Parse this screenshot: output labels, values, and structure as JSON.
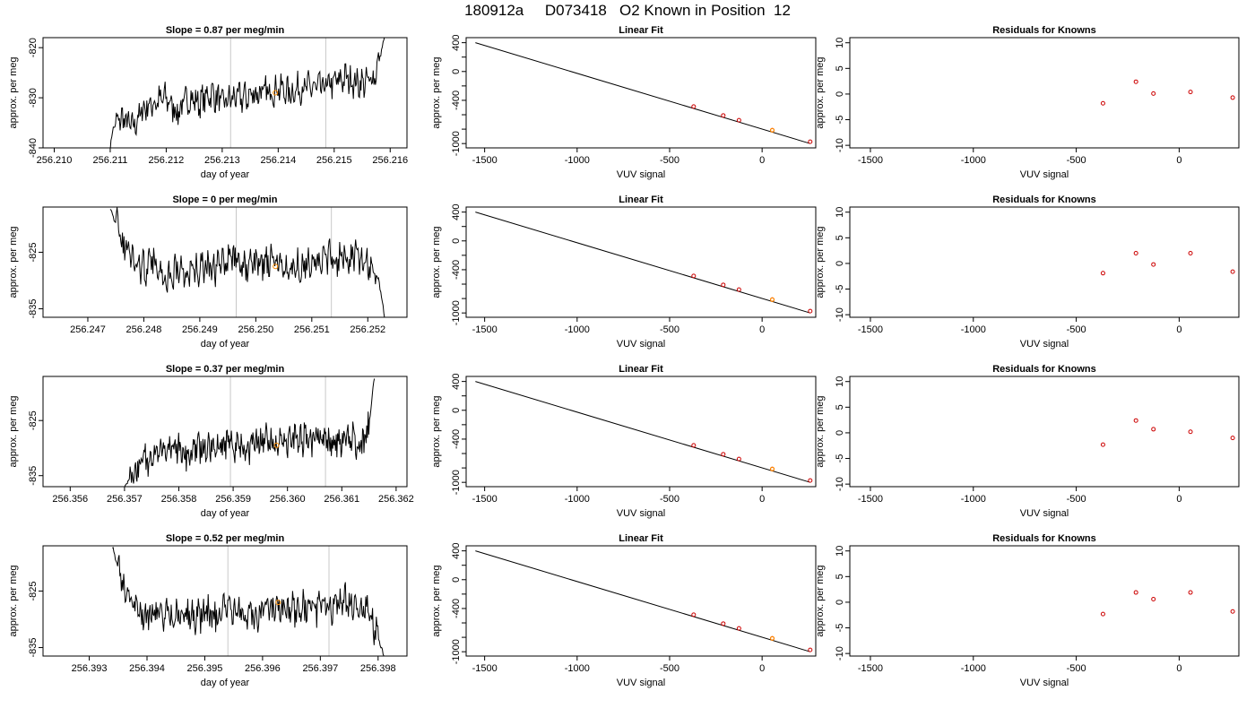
{
  "page": {
    "title": "180912a     D073418   O2 Known in Position  12"
  },
  "chart_data": [
    {
      "type": "line",
      "panel": "timeseries",
      "row": 0,
      "title": "Slope =  0.87  per meg/min",
      "xlabel": "day of year",
      "ylabel": "approx. per meg",
      "xlim": [
        256.2098,
        256.2163
      ],
      "ylim": [
        -840,
        -818
      ],
      "xticks": [
        "256.210",
        "256.211",
        "256.212",
        "256.213",
        "256.214",
        "256.215",
        "256.216"
      ],
      "yticks": [
        "-820",
        "-830",
        "-840"
      ],
      "x_start": 256.211,
      "x_end": 256.2159,
      "vlines": [
        256.21315,
        256.21485
      ],
      "marker": {
        "x": 256.21395,
        "y": -829.0
      },
      "series": [
        {
          "x": [
            256.211,
            256.21105,
            256.2112,
            256.2114,
            256.2116,
            256.2118,
            256.212,
            256.2122,
            256.2124,
            256.2126,
            256.2128,
            256.213,
            256.2132,
            256.2134,
            256.2136,
            256.2138,
            256.214,
            256.2142,
            256.2144,
            256.2146,
            256.2148,
            256.215,
            256.2152,
            256.2154,
            256.2156,
            256.21575,
            256.2159
          ],
          "y": [
            -840,
            -836,
            -834,
            -836,
            -832,
            -831,
            -830,
            -833,
            -830,
            -831,
            -829,
            -831,
            -830,
            -830,
            -829,
            -829,
            -828,
            -829,
            -828,
            -828,
            -828,
            -827,
            -826,
            -827,
            -827,
            -825,
            -818
          ]
        }
      ]
    },
    {
      "type": "scatter",
      "panel": "linear-fit",
      "row": 0,
      "title": "Linear Fit",
      "xlabel": "VUV signal",
      "ylabel": "approx. per meg",
      "xlim": [
        -1600,
        290
      ],
      "ylim": [
        -1060,
        470
      ],
      "xticks": [
        -1500,
        -1000,
        -500,
        0
      ],
      "yticks": [
        400,
        0,
        -400,
        -1000
      ],
      "fit_line": {
        "x": [
          -1550,
          260
        ],
        "y": [
          400,
          -1000
        ]
      },
      "points": {
        "x": [
          -370,
          -210,
          -125,
          55,
          260
        ],
        "y": [
          -486,
          -610,
          -676,
          -815,
          -975
        ]
      },
      "marker": {
        "x": 55,
        "y": -815
      }
    },
    {
      "type": "scatter",
      "panel": "residuals",
      "row": 0,
      "title": "Residuals for Knowns",
      "xlabel": "VUV signal",
      "ylabel": "approx. per meg",
      "xlim": [
        -1600,
        290
      ],
      "ylim": [
        -10.5,
        11
      ],
      "xticks": [
        -1500,
        -1000,
        -500,
        0
      ],
      "yticks": [
        10,
        5,
        0,
        -5,
        -10
      ],
      "points": {
        "x": [
          -370,
          -210,
          -125,
          55,
          260
        ],
        "y": [
          -1.8,
          2.4,
          0.1,
          0.4,
          -0.7
        ]
      }
    },
    {
      "type": "line",
      "panel": "timeseries",
      "row": 1,
      "title": "Slope =  0  per meg/min",
      "xlabel": "day of year",
      "ylabel": "approx. per meg",
      "xlim": [
        256.2462,
        256.2527
      ],
      "ylim": [
        -836.5,
        -817
      ],
      "xticks": [
        "256.247",
        "256.248",
        "256.249",
        "256.250",
        "256.251",
        "256.252"
      ],
      "yticks": [
        "-825",
        "-835"
      ],
      "x_start": 256.2474,
      "x_end": 256.2523,
      "vlines": [
        256.24965,
        256.25135
      ],
      "marker": {
        "x": 256.25035,
        "y": -827.5
      },
      "series": [
        {
          "x": [
            256.2474,
            256.2476,
            256.2478,
            256.248,
            256.2482,
            256.2484,
            256.2486,
            256.2488,
            256.249,
            256.2492,
            256.2494,
            256.2496,
            256.2498,
            256.25,
            256.2502,
            256.2504,
            256.2506,
            256.2508,
            256.251,
            256.2512,
            256.2514,
            256.2516,
            256.2518,
            256.252,
            256.2522,
            256.2523
          ],
          "y": [
            -817,
            -823,
            -826,
            -828,
            -827,
            -829,
            -828,
            -829,
            -828,
            -828,
            -827,
            -826,
            -828,
            -827,
            -827,
            -827,
            -828,
            -827,
            -827,
            -826,
            -826,
            -826,
            -826,
            -827,
            -830,
            -836.5
          ]
        }
      ]
    },
    {
      "type": "scatter",
      "panel": "linear-fit",
      "row": 1,
      "title": "Linear Fit",
      "xlabel": "VUV signal",
      "ylabel": "approx. per meg",
      "xlim": [
        -1600,
        290
      ],
      "ylim": [
        -1060,
        470
      ],
      "xticks": [
        -1500,
        -1000,
        -500,
        0
      ],
      "yticks": [
        400,
        0,
        -400,
        -1000
      ],
      "fit_line": {
        "x": [
          -1550,
          260
        ],
        "y": [
          400,
          -1000
        ]
      },
      "points": {
        "x": [
          -370,
          -210,
          -125,
          55,
          260
        ],
        "y": [
          -486,
          -610,
          -676,
          -815,
          -975
        ]
      },
      "marker": {
        "x": 55,
        "y": -815
      }
    },
    {
      "type": "scatter",
      "panel": "residuals",
      "row": 1,
      "title": "Residuals for Knowns",
      "xlabel": "VUV signal",
      "ylabel": "approx. per meg",
      "xlim": [
        -1600,
        290
      ],
      "ylim": [
        -10.5,
        11
      ],
      "xticks": [
        -1500,
        -1000,
        -500,
        0
      ],
      "yticks": [
        10,
        5,
        0,
        -5,
        -10
      ],
      "points": {
        "x": [
          -370,
          -210,
          -125,
          55,
          260
        ],
        "y": [
          -1.9,
          2.0,
          -0.2,
          2.0,
          -1.6
        ]
      }
    },
    {
      "type": "line",
      "panel": "timeseries",
      "row": 2,
      "title": "Slope =  0.37  per meg/min",
      "xlabel": "day of year",
      "ylabel": "approx. per meg",
      "xlim": [
        256.3555,
        256.3622
      ],
      "ylim": [
        -837,
        -817
      ],
      "xticks": [
        "256.356",
        "256.357",
        "256.358",
        "256.359",
        "256.360",
        "256.361",
        "256.362"
      ],
      "yticks": [
        "-825",
        "-835"
      ],
      "x_start": 256.357,
      "x_end": 256.3616,
      "vlines": [
        256.35895,
        256.3607
      ],
      "marker": {
        "x": 256.3598,
        "y": -829.5
      },
      "series": [
        {
          "x": [
            256.357,
            256.3572,
            256.3574,
            256.3576,
            256.3578,
            256.358,
            256.3582,
            256.3584,
            256.3586,
            256.3588,
            256.359,
            256.3592,
            256.3594,
            256.3596,
            256.3598,
            256.36,
            256.3602,
            256.3604,
            256.3606,
            256.3608,
            256.361,
            256.3612,
            256.3614,
            256.3615,
            256.3616
          ],
          "y": [
            -837,
            -834,
            -832,
            -831,
            -831,
            -830,
            -831,
            -830,
            -830,
            -830,
            -829,
            -830,
            -829,
            -829,
            -829,
            -829,
            -828,
            -829,
            -828,
            -829,
            -828,
            -828,
            -830,
            -826,
            -817
          ]
        }
      ]
    },
    {
      "type": "scatter",
      "panel": "linear-fit",
      "row": 2,
      "title": "Linear Fit",
      "xlabel": "VUV signal",
      "ylabel": "approx. per meg",
      "xlim": [
        -1600,
        290
      ],
      "ylim": [
        -1060,
        470
      ],
      "xticks": [
        -1500,
        -1000,
        -500,
        0
      ],
      "yticks": [
        400,
        0,
        -400,
        -1000
      ],
      "fit_line": {
        "x": [
          -1550,
          260
        ],
        "y": [
          400,
          -1000
        ]
      },
      "points": {
        "x": [
          -370,
          -210,
          -125,
          55,
          260
        ],
        "y": [
          -486,
          -610,
          -676,
          -815,
          -975
        ]
      },
      "marker": {
        "x": 55,
        "y": -815
      }
    },
    {
      "type": "scatter",
      "panel": "residuals",
      "row": 2,
      "title": "Residuals for Knowns",
      "xlabel": "VUV signal",
      "ylabel": "approx. per meg",
      "xlim": [
        -1600,
        290
      ],
      "ylim": [
        -10.5,
        11
      ],
      "xticks": [
        -1500,
        -1000,
        -500,
        0
      ],
      "yticks": [
        10,
        5,
        0,
        -5,
        -10
      ],
      "points": {
        "x": [
          -370,
          -210,
          -125,
          55,
          260
        ],
        "y": [
          -2.3,
          2.4,
          0.7,
          0.2,
          -1.0
        ]
      }
    },
    {
      "type": "line",
      "panel": "timeseries",
      "row": 3,
      "title": "Slope =  0.52  per meg/min",
      "xlabel": "day of year",
      "ylabel": "approx. per meg",
      "xlim": [
        256.3922,
        256.3985
      ],
      "ylim": [
        -836.5,
        -817
      ],
      "xticks": [
        "256.393",
        "256.394",
        "256.395",
        "256.396",
        "256.397",
        "256.398"
      ],
      "yticks": [
        "-825",
        "-835"
      ],
      "x_start": 256.3934,
      "x_end": 256.3981,
      "vlines": [
        256.3954,
        256.39715
      ],
      "marker": {
        "x": 256.39627,
        "y": -827.0
      },
      "series": [
        {
          "x": [
            256.3934,
            256.3936,
            256.3938,
            256.394,
            256.3942,
            256.3944,
            256.3946,
            256.3948,
            256.395,
            256.3952,
            256.3954,
            256.3956,
            256.3958,
            256.396,
            256.3962,
            256.3964,
            256.3966,
            256.3968,
            256.397,
            256.3972,
            256.3974,
            256.3976,
            256.3978,
            256.398,
            256.3981
          ],
          "y": [
            -817,
            -825,
            -828,
            -829,
            -829,
            -829,
            -829,
            -830,
            -829,
            -829,
            -828,
            -829,
            -829,
            -829,
            -828,
            -828,
            -828,
            -828,
            -828,
            -828,
            -827,
            -827,
            -828,
            -833,
            -836.5
          ]
        }
      ]
    },
    {
      "type": "scatter",
      "panel": "linear-fit",
      "row": 3,
      "title": "Linear Fit",
      "xlabel": "VUV signal",
      "ylabel": "approx. per meg",
      "xlim": [
        -1600,
        290
      ],
      "ylim": [
        -1060,
        470
      ],
      "xticks": [
        -1500,
        -1000,
        -500,
        0
      ],
      "yticks": [
        400,
        0,
        -400,
        -1000
      ],
      "fit_line": {
        "x": [
          -1550,
          260
        ],
        "y": [
          400,
          -1000
        ]
      },
      "points": {
        "x": [
          -370,
          -210,
          -125,
          55,
          260
        ],
        "y": [
          -486,
          -610,
          -676,
          -815,
          -975
        ]
      },
      "marker": {
        "x": 55,
        "y": -815
      }
    },
    {
      "type": "scatter",
      "panel": "residuals",
      "row": 3,
      "title": "Residuals for Knowns",
      "xlabel": "VUV signal",
      "ylabel": "approx. per meg",
      "xlim": [
        -1600,
        290
      ],
      "ylim": [
        -10.5,
        11
      ],
      "xticks": [
        -1500,
        -1000,
        -500,
        0
      ],
      "yticks": [
        10,
        5,
        0,
        -5,
        -10
      ],
      "points": {
        "x": [
          -370,
          -210,
          -125,
          55,
          260
        ],
        "y": [
          -2.3,
          1.9,
          0.6,
          1.9,
          -1.8
        ]
      }
    }
  ],
  "colors": {
    "line": "#000000",
    "vline": "#c8c8c8",
    "marker": "#ff8c00",
    "point": "#cc0000"
  }
}
